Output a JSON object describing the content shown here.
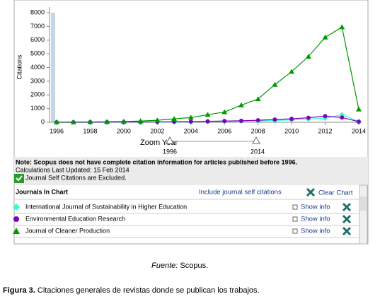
{
  "chart_data": {
    "type": "line",
    "y_label": "Citations",
    "x": [
      1996,
      1997,
      1998,
      1999,
      2000,
      2001,
      2002,
      2003,
      2004,
      2005,
      2006,
      2007,
      2008,
      2009,
      2010,
      2011,
      2012,
      2013,
      2014
    ],
    "xlim": [
      1996,
      2014
    ],
    "xticks": [
      1996,
      1998,
      2000,
      2002,
      2004,
      2006,
      2008,
      2010,
      2012,
      2014
    ],
    "ylim": [
      0,
      8000
    ],
    "yticks": [
      0,
      1000,
      2000,
      3000,
      4000,
      5000,
      6000,
      7000,
      8000
    ],
    "series": [
      {
        "name": "International Journal of Sustainability in Higher Education",
        "color": "#33ffcc",
        "marker": "diamond",
        "values": [
          0,
          0,
          0,
          0,
          5,
          10,
          15,
          20,
          30,
          40,
          60,
          80,
          100,
          130,
          170,
          230,
          300,
          550,
          60
        ]
      },
      {
        "name": "Environmental Education Research",
        "color": "#8000c0",
        "marker": "circle",
        "values": [
          0,
          0,
          5,
          10,
          15,
          20,
          30,
          40,
          50,
          70,
          90,
          110,
          150,
          200,
          250,
          330,
          450,
          350,
          40
        ]
      },
      {
        "name": "Journal of Cleaner Production",
        "color": "#009900",
        "marker": "triangle",
        "values": [
          10,
          20,
          30,
          40,
          60,
          90,
          150,
          250,
          350,
          550,
          750,
          1250,
          1700,
          2750,
          3700,
          4800,
          6200,
          6950,
          950
        ]
      }
    ]
  },
  "zoom": {
    "label": "Zoom Year",
    "start": "1996",
    "end": "2014"
  },
  "notes": [
    "Note: Scopus does not have complete citation information for articles published before 1996.",
    "Calculations Last Updated: 15 Feb 2014",
    "Journal Self Citations are Excluded."
  ],
  "panel": {
    "title": "Journals In Chart",
    "include": "Include journal self citations",
    "clear": "Clear Chart",
    "show_info": "Show info"
  },
  "caption": {
    "source_label": "Fuente:",
    "source": "Scopus.",
    "figure_label": "Figura 3.",
    "figure_text": "Citaciones generales de revistas donde se publican los trabajos."
  }
}
